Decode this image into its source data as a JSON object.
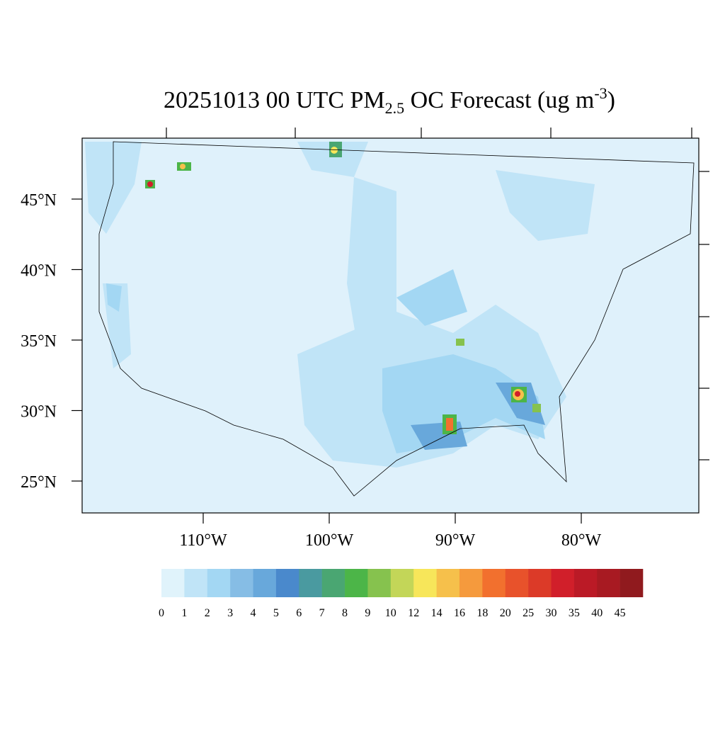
{
  "map": {
    "title": {
      "date": "20251013",
      "hour": "00 UTC",
      "species": "PM",
      "subscript": "2.5",
      "rest": "OC Forecast (ug m",
      "superscript": "-3",
      "close": ")"
    },
    "lat_ticks": [
      {
        "value": 45,
        "label": "45°N"
      },
      {
        "value": 40,
        "label": "40°N"
      },
      {
        "value": 35,
        "label": "35°N"
      },
      {
        "value": 30,
        "label": "30°N"
      },
      {
        "value": 25,
        "label": "25°N"
      }
    ],
    "lon_ticks": [
      {
        "value": 110,
        "label": "110°W"
      },
      {
        "value": 100,
        "label": "100°W"
      },
      {
        "value": 90,
        "label": "90°W"
      },
      {
        "value": 80,
        "label": "80°W"
      }
    ],
    "colorbar": {
      "levels": [
        0,
        1,
        2,
        3,
        4,
        5,
        6,
        7,
        8,
        9,
        10,
        12,
        14,
        16,
        18,
        20,
        25,
        30,
        35,
        40,
        45
      ],
      "colors": [
        "#e0f3fb",
        "#c0e4f7",
        "#a3d7f3",
        "#86bde5",
        "#68a8db",
        "#4a89cc",
        "#4a9aa0",
        "#4aa672",
        "#4cb548",
        "#86c24e",
        "#c3d658",
        "#f7e65a",
        "#f6c04b",
        "#f59a3d",
        "#f2702e",
        "#e8522b",
        "#dc3a28",
        "#d11f2a",
        "#bb1a26",
        "#a81a22",
        "#901a1e"
      ]
    }
  }
}
